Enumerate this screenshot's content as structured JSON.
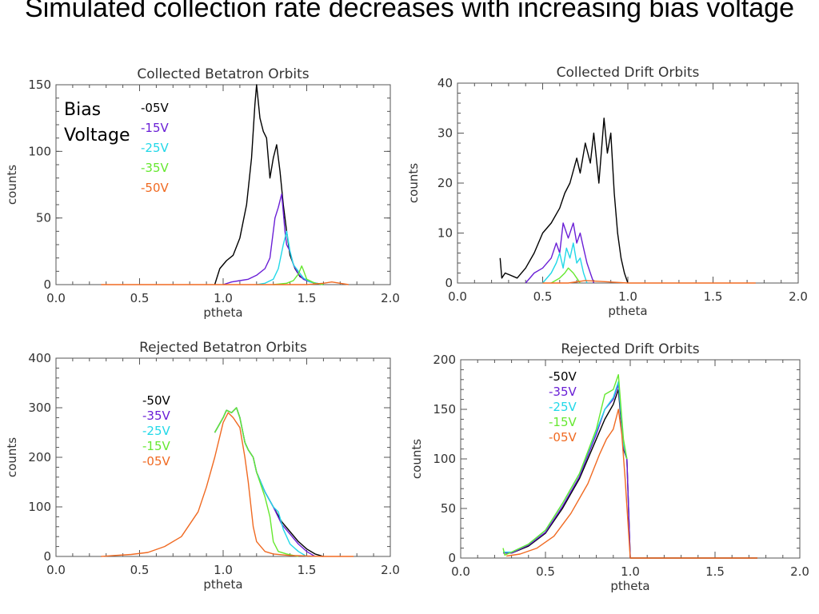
{
  "title": "Simulated collection rate decreases with increasing bias voltage",
  "colors": {
    "05V": "#000000",
    "15V": "#6a1fd6",
    "25V": "#22d8e8",
    "35V": "#66e830",
    "50V": "#f06a22"
  },
  "chart_data": [
    {
      "type": "line",
      "title": "Collected Betatron Orbits",
      "xlabel": "ptheta",
      "ylabel": "counts",
      "xlim": [
        0.0,
        2.0
      ],
      "ylim": [
        0,
        150
      ],
      "xticks": [
        "0.0",
        "0.5",
        "1.0",
        "1.5",
        "2.0"
      ],
      "yticks": [
        "0",
        "50",
        "100",
        "150"
      ],
      "legend_title": [
        "Bias",
        "Voltage"
      ],
      "legend": [
        "-05V",
        "-15V",
        "-25V",
        "-35V",
        "-50V"
      ],
      "series": [
        {
          "name": "-05V",
          "color": "#000000",
          "x": [
            0.95,
            0.98,
            1.02,
            1.06,
            1.1,
            1.14,
            1.17,
            1.19,
            1.2,
            1.22,
            1.24,
            1.26,
            1.28,
            1.3,
            1.32,
            1.34,
            1.36,
            1.38,
            1.4,
            1.43,
            1.46,
            1.5,
            1.55,
            1.6
          ],
          "y": [
            0,
            12,
            18,
            22,
            35,
            60,
            95,
            135,
            150,
            125,
            115,
            110,
            80,
            95,
            105,
            85,
            60,
            40,
            22,
            12,
            6,
            3,
            1,
            0
          ]
        },
        {
          "name": "-15V",
          "color": "#6a1fd6",
          "x": [
            1.0,
            1.05,
            1.1,
            1.15,
            1.2,
            1.25,
            1.28,
            1.31,
            1.33,
            1.35,
            1.37,
            1.38,
            1.4,
            1.42,
            1.45,
            1.48,
            1.52,
            1.56,
            1.6
          ],
          "y": [
            0,
            2,
            3,
            4,
            7,
            12,
            20,
            50,
            58,
            68,
            40,
            30,
            25,
            15,
            8,
            4,
            2,
            1,
            0
          ]
        },
        {
          "name": "-25V",
          "color": "#22d8e8",
          "x": [
            1.2,
            1.25,
            1.3,
            1.33,
            1.36,
            1.38,
            1.4,
            1.42,
            1.45,
            1.48,
            1.52,
            1.56,
            1.6
          ],
          "y": [
            0,
            1,
            4,
            12,
            30,
            40,
            25,
            15,
            10,
            5,
            2,
            1,
            0
          ]
        },
        {
          "name": "-35V",
          "color": "#66e830",
          "x": [
            1.3,
            1.38,
            1.42,
            1.45,
            1.47,
            1.48,
            1.5,
            1.55,
            1.6
          ],
          "y": [
            0,
            1,
            3,
            8,
            14,
            11,
            4,
            1,
            0
          ]
        },
        {
          "name": "-50V",
          "color": "#f06a22",
          "x": [
            0.27,
            0.5,
            0.8,
            1.0,
            1.3,
            1.5,
            1.6,
            1.65,
            1.7,
            1.75
          ],
          "y": [
            0,
            0,
            0,
            0,
            0,
            0,
            1,
            2,
            1,
            0
          ]
        }
      ]
    },
    {
      "type": "line",
      "title": "Collected Drift Orbits",
      "xlabel": "ptheta",
      "ylabel": "counts",
      "xlim": [
        0.0,
        2.0
      ],
      "ylim": [
        0,
        40
      ],
      "xticks": [
        "0.0",
        "0.5",
        "1.0",
        "1.5",
        "2.0"
      ],
      "yticks": [
        "0",
        "10",
        "20",
        "30",
        "40"
      ],
      "legend": [],
      "series": [
        {
          "name": "-05V",
          "color": "#000000",
          "x": [
            0.25,
            0.26,
            0.28,
            0.35,
            0.4,
            0.45,
            0.5,
            0.55,
            0.6,
            0.63,
            0.66,
            0.7,
            0.72,
            0.75,
            0.78,
            0.8,
            0.83,
            0.86,
            0.88,
            0.9,
            0.92,
            0.94,
            0.96,
            0.98,
            1.0
          ],
          "y": [
            5,
            1,
            2,
            1,
            3,
            6,
            10,
            12,
            15,
            18,
            20,
            25,
            22,
            28,
            24,
            30,
            20,
            33,
            26,
            30,
            18,
            10,
            5,
            2,
            0
          ]
        },
        {
          "name": "-15V",
          "color": "#6a1fd6",
          "x": [
            0.4,
            0.45,
            0.5,
            0.55,
            0.58,
            0.6,
            0.62,
            0.65,
            0.68,
            0.7,
            0.72,
            0.74,
            0.76,
            0.78,
            0.8
          ],
          "y": [
            0,
            2,
            3,
            5,
            8,
            6,
            12,
            9,
            12,
            8,
            10,
            7,
            4,
            2,
            0
          ]
        },
        {
          "name": "-25V",
          "color": "#22d8e8",
          "x": [
            0.5,
            0.55,
            0.58,
            0.6,
            0.62,
            0.64,
            0.66,
            0.68,
            0.7,
            0.72,
            0.74,
            0.76
          ],
          "y": [
            0,
            2,
            4,
            6,
            3,
            7,
            5,
            8,
            4,
            5,
            2,
            0
          ]
        },
        {
          "name": "-35V",
          "color": "#66e830",
          "x": [
            0.55,
            0.6,
            0.63,
            0.65,
            0.68,
            0.7,
            0.72
          ],
          "y": [
            0,
            1,
            2,
            3,
            2,
            1,
            0
          ]
        },
        {
          "name": "-50V",
          "color": "#f06a22",
          "x": [
            0.5,
            0.65,
            0.75,
            1.0,
            1.3,
            1.6,
            1.75
          ],
          "y": [
            0,
            0,
            0.5,
            0,
            0,
            0,
            0
          ]
        }
      ]
    },
    {
      "type": "line",
      "title": "Rejected Betatron Orbits",
      "xlabel": "ptheta",
      "ylabel": "counts",
      "xlim": [
        0.0,
        2.0
      ],
      "ylim": [
        0,
        400
      ],
      "xticks": [
        "0.0",
        "0.5",
        "1.0",
        "1.5",
        "2.0"
      ],
      "yticks": [
        "0",
        "100",
        "200",
        "300",
        "400"
      ],
      "legend": [
        "-50V",
        "-35V",
        "-25V",
        "-15V",
        "-05V"
      ],
      "series": [
        {
          "name": "-50V",
          "color": "#000000",
          "x": [
            0.95,
            1.0,
            1.02,
            1.05,
            1.08,
            1.1,
            1.13,
            1.15,
            1.18,
            1.2,
            1.25,
            1.3,
            1.35,
            1.4,
            1.45,
            1.5,
            1.55,
            1.6
          ],
          "y": [
            250,
            280,
            295,
            290,
            300,
            280,
            230,
            215,
            200,
            170,
            130,
            100,
            70,
            50,
            30,
            15,
            5,
            0
          ]
        },
        {
          "name": "-35V",
          "color": "#6a1fd6",
          "x": [
            0.95,
            1.0,
            1.02,
            1.05,
            1.08,
            1.1,
            1.13,
            1.15,
            1.18,
            1.2,
            1.25,
            1.3,
            1.35,
            1.4,
            1.45,
            1.5,
            1.55
          ],
          "y": [
            250,
            280,
            295,
            290,
            300,
            280,
            230,
            215,
            200,
            170,
            130,
            100,
            65,
            45,
            25,
            10,
            0
          ]
        },
        {
          "name": "-25V",
          "color": "#22d8e8",
          "x": [
            0.95,
            1.0,
            1.02,
            1.05,
            1.08,
            1.1,
            1.13,
            1.15,
            1.18,
            1.2,
            1.25,
            1.3,
            1.33,
            1.36,
            1.4,
            1.45,
            1.5
          ],
          "y": [
            250,
            280,
            295,
            290,
            300,
            280,
            230,
            215,
            200,
            170,
            130,
            100,
            90,
            55,
            25,
            10,
            0
          ]
        },
        {
          "name": "-15V",
          "color": "#66e830",
          "x": [
            0.95,
            1.0,
            1.02,
            1.05,
            1.08,
            1.1,
            1.13,
            1.15,
            1.18,
            1.2,
            1.25,
            1.28,
            1.3,
            1.33,
            1.38,
            1.45
          ],
          "y": [
            250,
            280,
            295,
            290,
            300,
            280,
            230,
            215,
            200,
            170,
            120,
            80,
            30,
            10,
            5,
            0
          ]
        },
        {
          "name": "-05V",
          "color": "#f06a22",
          "x": [
            0.27,
            0.35,
            0.45,
            0.55,
            0.65,
            0.75,
            0.85,
            0.9,
            0.95,
            1.0,
            1.03,
            1.06,
            1.1,
            1.13,
            1.15,
            1.18,
            1.2,
            1.25,
            1.3,
            1.4,
            1.5,
            1.6,
            1.7,
            1.78
          ],
          "y": [
            0,
            2,
            4,
            8,
            20,
            40,
            90,
            140,
            200,
            270,
            290,
            280,
            260,
            200,
            150,
            60,
            30,
            10,
            5,
            2,
            1,
            0,
            0,
            0
          ]
        }
      ]
    },
    {
      "type": "line",
      "title": "Rejected Drift Orbits",
      "xlabel": "ptheta",
      "ylabel": "counts",
      "xlim": [
        0.0,
        2.0
      ],
      "ylim": [
        0,
        200
      ],
      "xticks": [
        "0.0",
        "0.5",
        "1.0",
        "1.5",
        "2.0"
      ],
      "yticks": [
        "0",
        "50",
        "100",
        "150",
        "200"
      ],
      "legend": [
        "-50V",
        "-35V",
        "-25V",
        "-15V",
        "-05V"
      ],
      "series": [
        {
          "name": "-50V",
          "color": "#000000",
          "x": [
            0.25,
            0.3,
            0.4,
            0.5,
            0.6,
            0.7,
            0.8,
            0.85,
            0.9,
            0.93,
            0.96,
            0.98,
            1.0,
            1.2,
            1.5,
            1.75
          ],
          "y": [
            5,
            5,
            12,
            25,
            50,
            80,
            120,
            140,
            155,
            170,
            110,
            100,
            0,
            0,
            0,
            0
          ]
        },
        {
          "name": "-35V",
          "color": "#6a1fd6",
          "x": [
            0.25,
            0.3,
            0.4,
            0.5,
            0.6,
            0.7,
            0.8,
            0.85,
            0.9,
            0.93,
            0.96,
            0.98,
            1.0
          ],
          "y": [
            5,
            5,
            13,
            26,
            52,
            82,
            125,
            150,
            160,
            175,
            112,
            100,
            0
          ]
        },
        {
          "name": "-25V",
          "color": "#22d8e8",
          "x": [
            0.25,
            0.3,
            0.4,
            0.5,
            0.6,
            0.7,
            0.8,
            0.85,
            0.9,
            0.93,
            0.96,
            0.98
          ],
          "y": [
            6,
            6,
            14,
            28,
            55,
            85,
            128,
            150,
            162,
            178,
            115,
            100
          ]
        },
        {
          "name": "-15V",
          "color": "#66e830",
          "x": [
            0.25,
            0.26,
            0.3,
            0.4,
            0.5,
            0.6,
            0.7,
            0.8,
            0.85,
            0.9,
            0.93,
            0.96,
            0.98
          ],
          "y": [
            10,
            3,
            6,
            14,
            28,
            55,
            85,
            130,
            165,
            170,
            185,
            120,
            100
          ]
        },
        {
          "name": "-05V",
          "color": "#f06a22",
          "x": [
            0.27,
            0.35,
            0.45,
            0.55,
            0.65,
            0.75,
            0.82,
            0.86,
            0.9,
            0.93,
            0.95,
            0.97,
            1.0,
            1.02,
            1.3,
            1.6,
            1.75
          ],
          "y": [
            2,
            4,
            10,
            22,
            45,
            75,
            105,
            120,
            130,
            150,
            125,
            80,
            0,
            0,
            0,
            0,
            0
          ]
        }
      ]
    }
  ]
}
